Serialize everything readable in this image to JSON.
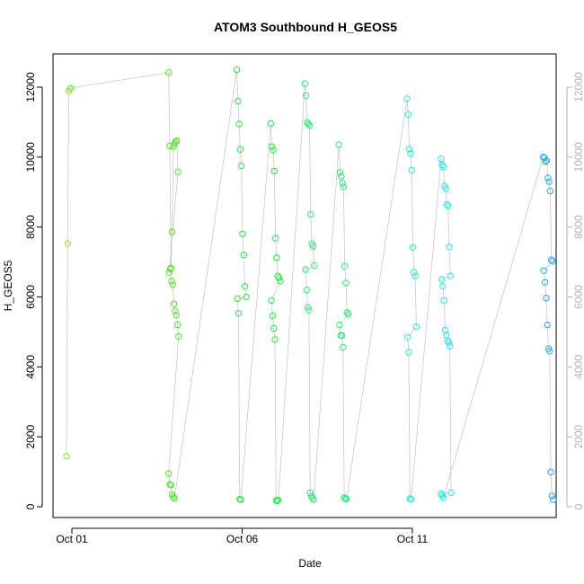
{
  "chart_data": {
    "type": "scatter",
    "title": "ATOM3 Southbound H_GEOS5",
    "xlabel": "Date",
    "ylabel": "H_GEOS5",
    "x_ticks": [
      "Oct 01",
      "Oct 06",
      "Oct 11"
    ],
    "y_ticks": [
      "0",
      "2000",
      "4000",
      "6000",
      "8000",
      "10000",
      "12000"
    ],
    "y_ticks_right": [
      "0",
      "2000",
      "4000",
      "6000",
      "8000",
      "10000",
      "12000"
    ],
    "ylim": [
      0,
      12600
    ],
    "grid": false,
    "legend": "none",
    "connect_line_color": "#c8c8c8",
    "series": [
      {
        "color": "#88e63a",
        "points": [
          {
            "x": "2016-10-01",
            "y": 1450
          },
          {
            "x": "2016-10-01",
            "y": 7520
          },
          {
            "x": "2016-10-01",
            "y": 11890
          },
          {
            "x": "2016-10-01",
            "y": 11950
          },
          {
            "x": "2016-10-01",
            "y": 11980
          }
        ]
      },
      {
        "color": "#56e02e",
        "points": [
          {
            "x": "2016-10-04",
            "y": 12420
          },
          {
            "x": "2016-10-04",
            "y": 10320
          },
          {
            "x": "2016-10-04",
            "y": 6830
          },
          {
            "x": "2016-10-04",
            "y": 7860
          },
          {
            "x": "2016-10-04",
            "y": 10300
          },
          {
            "x": "2016-10-04",
            "y": 10380
          },
          {
            "x": "2016-10-04",
            "y": 10440
          },
          {
            "x": "2016-10-04",
            "y": 10470
          },
          {
            "x": "2016-10-04",
            "y": 9580
          },
          {
            "x": "2016-10-04",
            "y": 6700
          },
          {
            "x": "2016-10-04",
            "y": 6800
          },
          {
            "x": "2016-10-04",
            "y": 6450
          },
          {
            "x": "2016-10-04",
            "y": 6350
          },
          {
            "x": "2016-10-04",
            "y": 5800
          },
          {
            "x": "2016-10-04",
            "y": 5600
          },
          {
            "x": "2016-10-04",
            "y": 5480
          },
          {
            "x": "2016-10-04",
            "y": 5200
          },
          {
            "x": "2016-10-04",
            "y": 4870
          },
          {
            "x": "2016-10-04",
            "y": 950
          },
          {
            "x": "2016-10-04",
            "y": 640
          },
          {
            "x": "2016-10-04",
            "y": 620
          },
          {
            "x": "2016-10-04",
            "y": 350
          },
          {
            "x": "2016-10-04",
            "y": 280
          },
          {
            "x": "2016-10-04",
            "y": 240
          }
        ]
      },
      {
        "color": "#2ee24a",
        "points": [
          {
            "x": "2016-10-06",
            "y": 12500
          },
          {
            "x": "2016-10-06",
            "y": 11600
          },
          {
            "x": "2016-10-06",
            "y": 10950
          },
          {
            "x": "2016-10-06",
            "y": 10220
          },
          {
            "x": "2016-10-06",
            "y": 9750
          },
          {
            "x": "2016-10-06",
            "y": 7800
          },
          {
            "x": "2016-10-06",
            "y": 7200
          },
          {
            "x": "2016-10-06",
            "y": 6300
          },
          {
            "x": "2016-10-06",
            "y": 6000
          },
          {
            "x": "2016-10-06",
            "y": 5950
          },
          {
            "x": "2016-10-06",
            "y": 5530
          },
          {
            "x": "2016-10-06",
            "y": 220
          },
          {
            "x": "2016-10-06",
            "y": 200
          },
          {
            "x": "2016-10-07",
            "y": 10960
          },
          {
            "x": "2016-10-07",
            "y": 10300
          },
          {
            "x": "2016-10-07",
            "y": 10200
          },
          {
            "x": "2016-10-07",
            "y": 9600
          },
          {
            "x": "2016-10-07",
            "y": 7680
          },
          {
            "x": "2016-10-07",
            "y": 7120
          },
          {
            "x": "2016-10-07",
            "y": 6600
          },
          {
            "x": "2016-10-07",
            "y": 6550
          },
          {
            "x": "2016-10-07",
            "y": 6450
          },
          {
            "x": "2016-10-07",
            "y": 5900
          },
          {
            "x": "2016-10-07",
            "y": 5460
          },
          {
            "x": "2016-10-07",
            "y": 5100
          },
          {
            "x": "2016-10-07",
            "y": 4780
          },
          {
            "x": "2016-10-07",
            "y": 180
          },
          {
            "x": "2016-10-07",
            "y": 170
          },
          {
            "x": "2016-10-07",
            "y": 190
          }
        ]
      },
      {
        "color": "#2ee67a",
        "points": [
          {
            "x": "2016-10-08",
            "y": 12100
          },
          {
            "x": "2016-10-08",
            "y": 11760
          },
          {
            "x": "2016-10-08",
            "y": 10990
          },
          {
            "x": "2016-10-08",
            "y": 10950
          },
          {
            "x": "2016-10-08",
            "y": 10900
          },
          {
            "x": "2016-10-08",
            "y": 8360
          },
          {
            "x": "2016-10-08",
            "y": 7520
          },
          {
            "x": "2016-10-08",
            "y": 7450
          },
          {
            "x": "2016-10-08",
            "y": 6900
          },
          {
            "x": "2016-10-08",
            "y": 6780
          },
          {
            "x": "2016-10-08",
            "y": 6200
          },
          {
            "x": "2016-10-08",
            "y": 5700
          },
          {
            "x": "2016-10-08",
            "y": 5620
          },
          {
            "x": "2016-10-08",
            "y": 400
          },
          {
            "x": "2016-10-08",
            "y": 300
          },
          {
            "x": "2016-10-08",
            "y": 250
          },
          {
            "x": "2016-10-08",
            "y": 200
          },
          {
            "x": "2016-10-09",
            "y": 10350
          },
          {
            "x": "2016-10-09",
            "y": 9560
          },
          {
            "x": "2016-10-09",
            "y": 9450
          },
          {
            "x": "2016-10-09",
            "y": 9250
          },
          {
            "x": "2016-10-09",
            "y": 9150
          },
          {
            "x": "2016-10-09",
            "y": 6880
          },
          {
            "x": "2016-10-09",
            "y": 6400
          },
          {
            "x": "2016-10-09",
            "y": 5550
          },
          {
            "x": "2016-10-09",
            "y": 5500
          },
          {
            "x": "2016-10-09",
            "y": 5200
          },
          {
            "x": "2016-10-09",
            "y": 4900
          },
          {
            "x": "2016-10-09",
            "y": 4900
          },
          {
            "x": "2016-10-09",
            "y": 4560
          },
          {
            "x": "2016-10-09",
            "y": 260
          },
          {
            "x": "2016-10-09",
            "y": 230
          },
          {
            "x": "2016-10-09",
            "y": 220
          }
        ]
      },
      {
        "color": "#2ee8c8",
        "points": [
          {
            "x": "2016-10-11",
            "y": 11670
          },
          {
            "x": "2016-10-11",
            "y": 11220
          },
          {
            "x": "2016-10-11",
            "y": 10230
          },
          {
            "x": "2016-10-11",
            "y": 10100
          },
          {
            "x": "2016-10-11",
            "y": 9620
          },
          {
            "x": "2016-10-11",
            "y": 7420
          },
          {
            "x": "2016-10-11",
            "y": 6700
          },
          {
            "x": "2016-10-11",
            "y": 6600
          },
          {
            "x": "2016-10-11",
            "y": 5150
          },
          {
            "x": "2016-10-11",
            "y": 4850
          },
          {
            "x": "2016-10-11",
            "y": 4420
          },
          {
            "x": "2016-10-11",
            "y": 230
          },
          {
            "x": "2016-10-11",
            "y": 210
          }
        ]
      },
      {
        "color": "#2ee2e8",
        "points": [
          {
            "x": "2016-10-12",
            "y": 9950
          },
          {
            "x": "2016-10-12",
            "y": 9780
          },
          {
            "x": "2016-10-12",
            "y": 9720
          },
          {
            "x": "2016-10-12",
            "y": 9170
          },
          {
            "x": "2016-10-12",
            "y": 9100
          },
          {
            "x": "2016-10-12",
            "y": 8650
          },
          {
            "x": "2016-10-12",
            "y": 8600
          },
          {
            "x": "2016-10-12",
            "y": 7430
          },
          {
            "x": "2016-10-12",
            "y": 6600
          },
          {
            "x": "2016-10-12",
            "y": 6500
          },
          {
            "x": "2016-10-12",
            "y": 6300
          },
          {
            "x": "2016-10-12",
            "y": 5900
          },
          {
            "x": "2016-10-12",
            "y": 5050
          },
          {
            "x": "2016-10-12",
            "y": 4900
          },
          {
            "x": "2016-10-12",
            "y": 4750
          },
          {
            "x": "2016-10-12",
            "y": 4700
          },
          {
            "x": "2016-10-12",
            "y": 4600
          },
          {
            "x": "2016-10-12",
            "y": 400
          },
          {
            "x": "2016-10-12",
            "y": 370
          },
          {
            "x": "2016-10-12",
            "y": 330
          },
          {
            "x": "2016-10-12",
            "y": 260
          }
        ]
      },
      {
        "color": "#2ea8e8",
        "points": [
          {
            "x": "2016-10-15",
            "y": 10000
          },
          {
            "x": "2016-10-15",
            "y": 9980
          },
          {
            "x": "2016-10-15",
            "y": 9870
          },
          {
            "x": "2016-10-15",
            "y": 9900
          },
          {
            "x": "2016-10-15",
            "y": 9400
          },
          {
            "x": "2016-10-15",
            "y": 9300
          },
          {
            "x": "2016-10-15",
            "y": 9030
          },
          {
            "x": "2016-10-15",
            "y": 7060
          },
          {
            "x": "2016-10-15",
            "y": 7020
          },
          {
            "x": "2016-10-15",
            "y": 6750
          },
          {
            "x": "2016-10-15",
            "y": 6420
          },
          {
            "x": "2016-10-15",
            "y": 5970
          },
          {
            "x": "2016-10-15",
            "y": 5200
          },
          {
            "x": "2016-10-15",
            "y": 4520
          },
          {
            "x": "2016-10-15",
            "y": 4450
          },
          {
            "x": "2016-10-15",
            "y": 990
          },
          {
            "x": "2016-10-15",
            "y": 310
          },
          {
            "x": "2016-10-15",
            "y": 200
          }
        ]
      }
    ]
  }
}
